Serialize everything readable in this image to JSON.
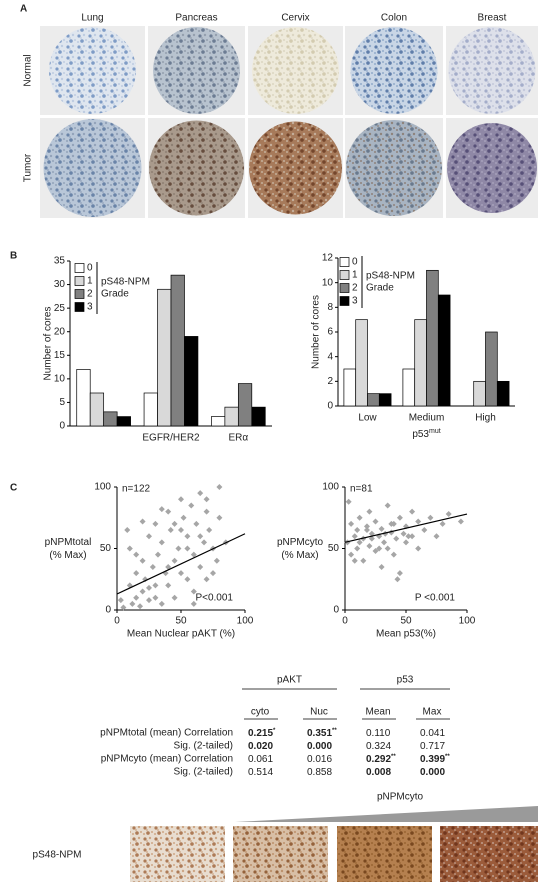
{
  "panels": [
    "A",
    "B",
    "C"
  ],
  "panel_a": {
    "columns": [
      "Lung",
      "Pancreas",
      "Cervix",
      "Colon",
      "Breast"
    ],
    "rows": [
      "Normal",
      "Tumor"
    ]
  },
  "chart_data": [
    {
      "type": "bar",
      "ylabel": "Number of cores",
      "categories": [
        null,
        "EGFR/HER2",
        "ERα"
      ],
      "legend_title": [
        "pS48-NPM",
        "Grade"
      ],
      "series": [
        {
          "name": "0",
          "color": "#ffffff",
          "values": [
            12,
            7,
            2
          ]
        },
        {
          "name": "1",
          "color": "#d9d9d9",
          "values": [
            7,
            29,
            4
          ]
        },
        {
          "name": "2",
          "color": "#808080",
          "values": [
            3,
            32,
            9
          ]
        },
        {
          "name": "3",
          "color": "#000000",
          "values": [
            2,
            19,
            4
          ]
        }
      ],
      "ylim": [
        0,
        35
      ],
      "yticks": [
        0,
        5,
        10,
        15,
        20,
        25,
        30,
        35
      ]
    },
    {
      "type": "bar",
      "ylabel": "Number of cores",
      "categories": [
        "Low",
        "Medium",
        "High"
      ],
      "xlabel": "p53",
      "xlabel_sup": "mut",
      "legend_title": [
        "pS48-NPM",
        "Grade"
      ],
      "series": [
        {
          "name": "0",
          "color": "#ffffff",
          "values": [
            3,
            3,
            0
          ]
        },
        {
          "name": "1",
          "color": "#d9d9d9",
          "values": [
            7,
            7,
            2
          ]
        },
        {
          "name": "2",
          "color": "#808080",
          "values": [
            1,
            11,
            6
          ]
        },
        {
          "name": "3",
          "color": "#000000",
          "values": [
            1,
            9,
            2
          ]
        }
      ],
      "ylim": [
        0,
        12
      ],
      "yticks": [
        0,
        2,
        4,
        6,
        8,
        10,
        12
      ]
    },
    {
      "type": "scatter",
      "ylabel": [
        "pNPMtotal",
        "(% Max)"
      ],
      "xlabel": "Mean Nuclear pAKT (%)",
      "annotations": [
        "n=122",
        "P<0.001"
      ],
      "color": "#a6a6a6",
      "x": [
        5,
        8,
        10,
        12,
        15,
        15,
        18,
        20,
        20,
        22,
        25,
        25,
        28,
        30,
        30,
        32,
        35,
        35,
        38,
        40,
        40,
        42,
        45,
        45,
        48,
        50,
        50,
        52,
        55,
        55,
        58,
        60,
        60,
        62,
        65,
        65,
        68,
        70,
        70,
        72,
        75,
        78,
        80,
        80,
        85,
        3,
        10,
        20,
        30,
        40,
        50,
        60,
        70,
        15,
        25,
        35,
        45,
        55,
        65,
        75
      ],
      "y": [
        2,
        65,
        20,
        5,
        30,
        10,
        3,
        40,
        15,
        25,
        60,
        8,
        35,
        20,
        70,
        45,
        5,
        55,
        30,
        80,
        20,
        65,
        40,
        10,
        50,
        90,
        30,
        75,
        25,
        60,
        85,
        45,
        15,
        70,
        35,
        95,
        55,
        80,
        25,
        65,
        50,
        40,
        100,
        75,
        55,
        8,
        50,
        72,
        10,
        35,
        65,
        5,
        90,
        45,
        18,
        82,
        70,
        50,
        60,
        30
      ],
      "trendline": {
        "x": [
          0,
          100
        ],
        "y": [
          13,
          62
        ]
      },
      "xlim": [
        0,
        100
      ],
      "ylim": [
        0,
        100
      ],
      "xticks": [
        0,
        50,
        100
      ],
      "yticks": [
        0,
        50,
        100
      ]
    },
    {
      "type": "scatter",
      "ylabel": [
        "pNPMcyto",
        "(% Max)"
      ],
      "xlabel": "Mean p53(%)",
      "annotations": [
        "n=81",
        "P <0.001"
      ],
      "color": "#a6a6a6",
      "x": [
        2,
        5,
        5,
        8,
        10,
        10,
        12,
        15,
        15,
        18,
        20,
        20,
        22,
        25,
        25,
        28,
        30,
        30,
        32,
        35,
        35,
        38,
        40,
        40,
        42,
        45,
        45,
        48,
        50,
        50,
        55,
        55,
        60,
        60,
        65,
        70,
        75,
        80,
        85,
        95,
        3,
        8,
        12,
        18,
        22,
        28,
        33,
        38,
        43,
        52
      ],
      "y": [
        55,
        70,
        45,
        60,
        50,
        65,
        75,
        40,
        58,
        68,
        52,
        80,
        62,
        48,
        72,
        60,
        35,
        66,
        55,
        85,
        50,
        63,
        70,
        45,
        58,
        75,
        30,
        62,
        68,
        55,
        80,
        60,
        72,
        50,
        65,
        75,
        60,
        70,
        78,
        72,
        88,
        40,
        55,
        65,
        58,
        50,
        62,
        70,
        25,
        60
      ],
      "trendline": {
        "x": [
          0,
          100
        ],
        "y": [
          55,
          78
        ]
      },
      "xlim": [
        0,
        100
      ],
      "ylim": [
        0,
        100
      ],
      "xticks": [
        0,
        50,
        100
      ],
      "yticks": [
        0,
        50,
        100
      ]
    }
  ],
  "table": {
    "groups": [
      {
        "name": "pAKT",
        "columns": [
          "cyto",
          "Nuc"
        ]
      },
      {
        "name": "p53",
        "columns": [
          "Mean",
          "Max"
        ]
      }
    ],
    "rows": [
      {
        "label": "pNPMtotal  (mean) Correlation",
        "cells": [
          {
            "text": "0.215",
            "sup": "*",
            "significant": true
          },
          {
            "text": "0.351",
            "sup": "**",
            "significant": true
          },
          {
            "text": "0.110"
          },
          {
            "text": "0.041"
          }
        ]
      },
      {
        "label": "Sig. (2-tailed)",
        "cells": [
          {
            "text": "0.020",
            "significant": true
          },
          {
            "text": "0.000",
            "significant": true
          },
          {
            "text": "0.324"
          },
          {
            "text": "0.717"
          }
        ]
      },
      {
        "label": "pNPMcyto (mean) Correlation",
        "cells": [
          {
            "text": "0.061"
          },
          {
            "text": "0.016"
          },
          {
            "text": "0.292",
            "sup": "**",
            "significant": true
          },
          {
            "text": "0.399",
            "sup": "**",
            "significant": true
          }
        ]
      },
      {
        "label": "Sig. (2-tailed)",
        "cells": [
          {
            "text": "0.514"
          },
          {
            "text": "0.858"
          },
          {
            "text": "0.008",
            "significant": true
          },
          {
            "text": "0.000",
            "significant": true
          }
        ]
      }
    ]
  },
  "panel_d": {
    "gradient_label": "pNPMcyto",
    "row_label": "pS48-NPM"
  }
}
